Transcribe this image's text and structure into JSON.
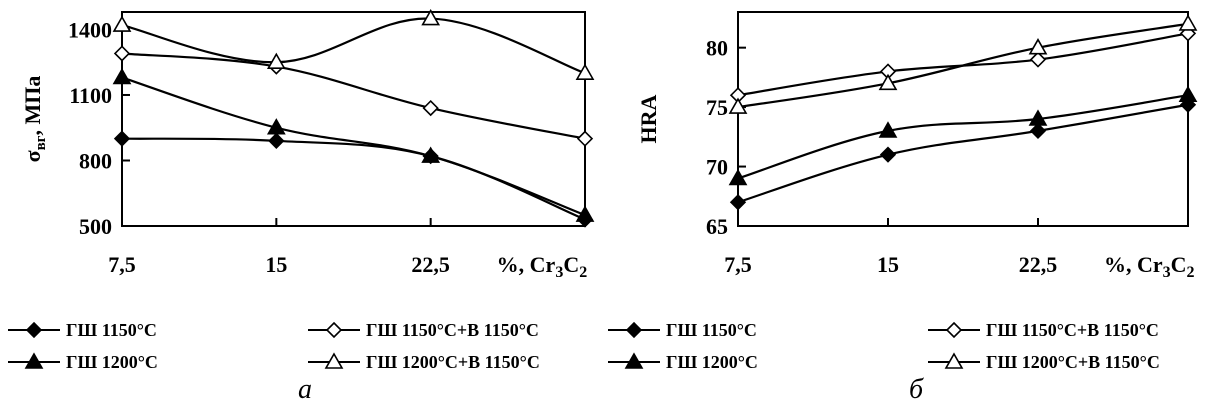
{
  "chart_data": [
    {
      "type": "line",
      "panel_label": "а",
      "ylabel": "σ",
      "ylabel_sub": "вг",
      "ylabel_unit": ", МПа",
      "xlabel_prefix": "%, Cr",
      "xlabel_sub1": "3",
      "xlabel_mid": "C",
      "xlabel_sub2": "2",
      "categories": [
        "7,5",
        "15",
        "22,5"
      ],
      "x": [
        7.5,
        15,
        22.5,
        30
      ],
      "yticks": [
        "1400",
        "1100",
        "800",
        "500"
      ],
      "ytick_values": [
        1400,
        1100,
        800,
        500
      ],
      "ylim": [
        500,
        1480
      ],
      "xlim": [
        7.5,
        30
      ],
      "grid": false,
      "series": [
        {
          "name": "ГШ 1150°С",
          "marker": "diamond-filled",
          "values": [
            900,
            890,
            820,
            530
          ]
        },
        {
          "name": "ГШ 1150°С+В 1150°С",
          "marker": "diamond-open",
          "values": [
            1290,
            1230,
            1040,
            900
          ]
        },
        {
          "name": "ГШ 1200°С",
          "marker": "triangle-filled",
          "values": [
            1180,
            950,
            820,
            550
          ]
        },
        {
          "name": "ГШ 1200°С+В 1150°С",
          "marker": "triangle-open",
          "values": [
            1420,
            1250,
            1450,
            1200
          ]
        }
      ]
    },
    {
      "type": "line",
      "panel_label": "б",
      "ylabel": "HRA",
      "xlabel_prefix": "%, Cr",
      "xlabel_sub1": "3",
      "xlabel_mid": "C",
      "xlabel_sub2": "2",
      "categories": [
        "7,5",
        "15",
        "22,5"
      ],
      "x": [
        7.5,
        15,
        22.5,
        30
      ],
      "yticks": [
        "80",
        "75",
        "70",
        "65"
      ],
      "ytick_values": [
        80,
        75,
        70,
        65
      ],
      "ylim": [
        65,
        83
      ],
      "xlim": [
        7.5,
        30
      ],
      "grid": false,
      "series": [
        {
          "name": "ГШ 1150°С",
          "marker": "diamond-filled",
          "values": [
            67,
            71,
            73,
            75.2
          ]
        },
        {
          "name": "ГШ 1150°С+В 1150°С",
          "marker": "diamond-open",
          "values": [
            76,
            78,
            79,
            81.2
          ]
        },
        {
          "name": "ГШ 1200°С",
          "marker": "triangle-filled",
          "values": [
            69,
            73,
            74,
            76
          ]
        },
        {
          "name": "ГШ 1200°С+В 1150°С",
          "marker": "triangle-open",
          "values": [
            75,
            77,
            80,
            82
          ]
        }
      ]
    }
  ]
}
